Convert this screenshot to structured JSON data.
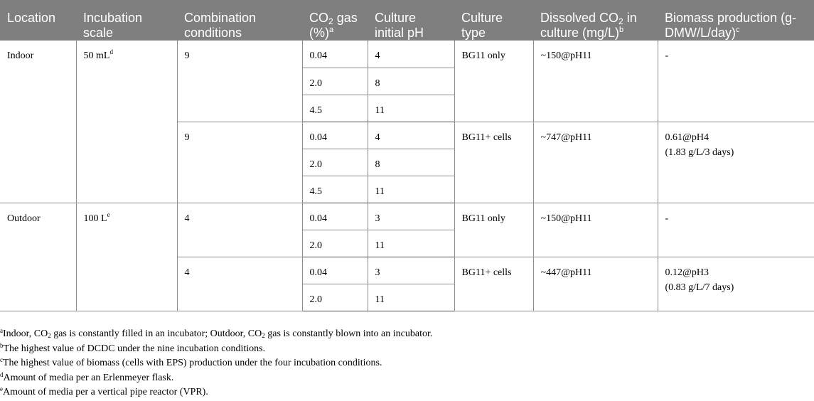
{
  "headers": [
    {
      "pre": "Location",
      "sub": "",
      "post": "",
      "sup": ""
    },
    {
      "pre": "Incubation scale",
      "sub": "",
      "post": "",
      "sup": ""
    },
    {
      "pre": "Combination conditions",
      "sub": "",
      "post": "",
      "sup": ""
    },
    {
      "pre": "CO",
      "sub": "2",
      "post": " gas (%)",
      "sup": "a"
    },
    {
      "pre": "Culture initial pH",
      "sub": "",
      "post": "",
      "sup": ""
    },
    {
      "pre": "Culture type",
      "sub": "",
      "post": "",
      "sup": ""
    },
    {
      "pre": "Dissolved CO",
      "sub": "2",
      "post": " in culture (mg/L)",
      "sup": "b"
    },
    {
      "pre": "Biomass production (g-DMW/L/day)",
      "sub": "",
      "post": "",
      "sup": "c"
    }
  ],
  "rows": {
    "indoor": {
      "location": "Indoor",
      "scale": "50 mL",
      "scale_sup": "d",
      "groups": [
        {
          "combo": "9",
          "culture_type": "BG11 only",
          "dissolved": "~150@pH11",
          "biomass_line1": "-",
          "biomass_line2": "",
          "sub_rows": [
            {
              "co2": "0.04",
              "ph": "4"
            },
            {
              "co2": "2.0",
              "ph": "8"
            },
            {
              "co2": "4.5",
              "ph": "11"
            }
          ]
        },
        {
          "combo": "9",
          "culture_type": "BG11+ cells",
          "dissolved": "~747@pH11",
          "biomass_line1": "0.61@pH4",
          "biomass_line2": "(1.83 g/L/3 days)",
          "sub_rows": [
            {
              "co2": "0.04",
              "ph": "4"
            },
            {
              "co2": "2.0",
              "ph": "8"
            },
            {
              "co2": "4.5",
              "ph": "11"
            }
          ]
        }
      ]
    },
    "outdoor": {
      "location": "Outdoor",
      "scale": "100 L",
      "scale_sup": "e",
      "groups": [
        {
          "combo": "4",
          "culture_type": "BG11 only",
          "dissolved": "~150@pH11",
          "biomass_line1": "-",
          "biomass_line2": "",
          "sub_rows": [
            {
              "co2": "0.04",
              "ph": "3"
            },
            {
              "co2": "2.0",
              "ph": "11"
            }
          ]
        },
        {
          "combo": "4",
          "culture_type": "BG11+ cells",
          "dissolved": "~447@pH11",
          "biomass_line1": "0.12@pH3",
          "biomass_line2": "(0.83 g/L/7 days)",
          "sub_rows": [
            {
              "co2": "0.04",
              "ph": "3"
            },
            {
              "co2": "2.0",
              "ph": "11"
            }
          ]
        }
      ]
    }
  },
  "footnotes": [
    {
      "mark": "a",
      "parts": [
        "Indoor, CO",
        "2",
        " gas is constantly filled in an incubator; Outdoor, CO",
        "2",
        " gas is constantly blown into an incubator."
      ]
    },
    {
      "mark": "b",
      "parts": [
        "The highest value of DCDC under the nine incubation conditions."
      ]
    },
    {
      "mark": "c",
      "parts": [
        "The highest value of biomass (cells with EPS) production under the four incubation conditions."
      ]
    },
    {
      "mark": "d",
      "parts": [
        "Amount of media per an Erlenmeyer flask."
      ]
    },
    {
      "mark": "e",
      "parts": [
        "Amount of media per a vertical pipe reactor (VPR)."
      ]
    }
  ]
}
